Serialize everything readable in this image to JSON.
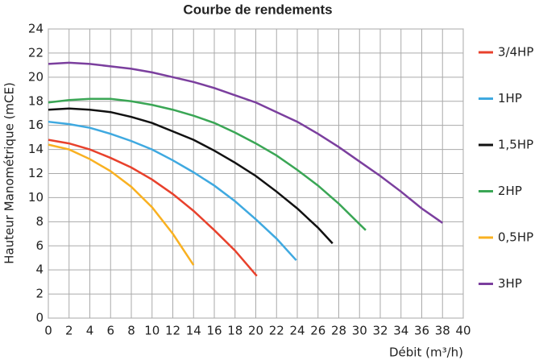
{
  "chart_data": {
    "type": "line",
    "title": "Courbe de rendements",
    "xlabel": "Débit (m³/h)",
    "ylabel": "Hauteur Manométrique (mCE)",
    "xlim": [
      0,
      40
    ],
    "ylim": [
      0,
      24
    ],
    "xticks": [
      0,
      2,
      4,
      6,
      8,
      10,
      12,
      14,
      16,
      18,
      20,
      22,
      24,
      26,
      28,
      30,
      32,
      34,
      36,
      38,
      40
    ],
    "yticks": [
      0,
      2,
      4,
      6,
      8,
      10,
      12,
      14,
      16,
      18,
      20,
      22,
      24
    ],
    "grid": true,
    "legend": "right",
    "series": [
      {
        "name": "3/4HP",
        "color": "#e8412c",
        "x": [
          0,
          2,
          4,
          6,
          8,
          10,
          12,
          14,
          16,
          18,
          20.1
        ],
        "values": [
          14.8,
          14.5,
          14.0,
          13.3,
          12.5,
          11.5,
          10.3,
          8.9,
          7.3,
          5.6,
          3.5
        ]
      },
      {
        "name": "1HP",
        "color": "#3fa9e0",
        "x": [
          0,
          2,
          4,
          6,
          8,
          10,
          12,
          14,
          16,
          18,
          20,
          22,
          23.9
        ],
        "values": [
          16.3,
          16.1,
          15.8,
          15.3,
          14.7,
          14.0,
          13.1,
          12.1,
          11.0,
          9.7,
          8.2,
          6.6,
          4.8
        ]
      },
      {
        "name": "1,5HP",
        "color": "#111111",
        "x": [
          0,
          2,
          4,
          6,
          8,
          10,
          12,
          14,
          16,
          18,
          20,
          22,
          24,
          26,
          27.4
        ],
        "values": [
          17.3,
          17.4,
          17.3,
          17.1,
          16.7,
          16.2,
          15.5,
          14.8,
          13.9,
          12.9,
          11.8,
          10.5,
          9.1,
          7.5,
          6.2
        ]
      },
      {
        "name": "2HP",
        "color": "#3aa655",
        "x": [
          0,
          2,
          4,
          6,
          8,
          10,
          12,
          14,
          16,
          18,
          20,
          22,
          24,
          26,
          28,
          30,
          30.6
        ],
        "values": [
          17.9,
          18.1,
          18.2,
          18.2,
          18.0,
          17.7,
          17.3,
          16.8,
          16.2,
          15.4,
          14.5,
          13.5,
          12.3,
          11.0,
          9.5,
          7.8,
          7.3
        ]
      },
      {
        "name": "0,5HP",
        "color": "#f9b121",
        "x": [
          0,
          2,
          4,
          6,
          8,
          10,
          12,
          14
        ],
        "values": [
          14.4,
          14.0,
          13.2,
          12.2,
          10.9,
          9.2,
          7.0,
          4.4
        ]
      },
      {
        "name": "3HP",
        "color": "#7b3f9e",
        "x": [
          0,
          2,
          4,
          6,
          8,
          10,
          12,
          14,
          16,
          18,
          20,
          22,
          24,
          26,
          28,
          30,
          32,
          34,
          36,
          38
        ],
        "values": [
          21.1,
          21.2,
          21.1,
          20.9,
          20.7,
          20.4,
          20.0,
          19.6,
          19.1,
          18.5,
          17.9,
          17.1,
          16.3,
          15.3,
          14.2,
          13.0,
          11.8,
          10.5,
          9.1,
          7.9
        ]
      }
    ]
  }
}
